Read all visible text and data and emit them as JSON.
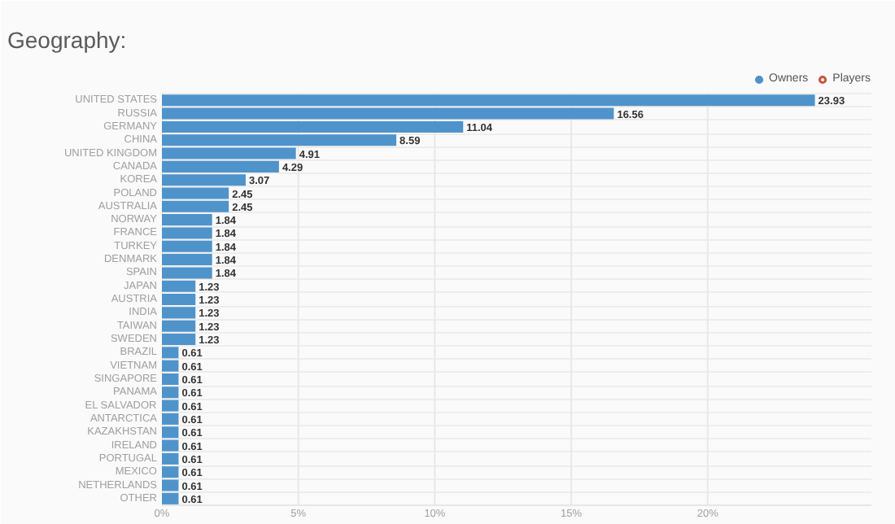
{
  "chart_data": {
    "type": "bar",
    "title": "Geography:",
    "orientation": "horizontal",
    "categories": [
      "UNITED STATES",
      "RUSSIA",
      "GERMANY",
      "CHINA",
      "UNITED KINGDOM",
      "CANADA",
      "KOREA",
      "POLAND",
      "AUSTRALIA",
      "NORWAY",
      "FRANCE",
      "TURKEY",
      "DENMARK",
      "SPAIN",
      "JAPAN",
      "AUSTRIA",
      "INDIA",
      "TAIWAN",
      "SWEDEN",
      "BRAZIL",
      "VIETNAM",
      "SINGAPORE",
      "PANAMA",
      "EL SALVADOR",
      "ANTARCTICA",
      "KAZAKHSTAN",
      "IRELAND",
      "PORTUGAL",
      "MEXICO",
      "NETHERLANDS",
      "OTHER"
    ],
    "series": [
      {
        "name": "Owners",
        "color": "#4f93cb",
        "values": [
          23.93,
          16.56,
          11.04,
          8.59,
          4.91,
          4.29,
          3.07,
          2.45,
          2.45,
          1.84,
          1.84,
          1.84,
          1.84,
          1.84,
          1.23,
          1.23,
          1.23,
          1.23,
          1.23,
          0.61,
          0.61,
          0.61,
          0.61,
          0.61,
          0.61,
          0.61,
          0.61,
          0.61,
          0.61,
          0.61,
          0.61
        ]
      },
      {
        "name": "Players",
        "color": "#c9533f",
        "values": [
          null,
          null,
          null,
          null,
          null,
          null,
          null,
          null,
          null,
          null,
          null,
          null,
          null,
          null,
          null,
          null,
          null,
          null,
          null,
          null,
          null,
          null,
          null,
          null,
          null,
          null,
          null,
          null,
          null,
          null,
          null
        ]
      }
    ],
    "xlim": [
      0,
      26
    ],
    "xticks": [
      {
        "value": 0,
        "label": "0%"
      },
      {
        "value": 5,
        "label": "5%"
      },
      {
        "value": 10,
        "label": "10%"
      },
      {
        "value": 15,
        "label": "15%"
      },
      {
        "value": 20,
        "label": "20%"
      }
    ],
    "data_labels": true,
    "grid": true,
    "legend": "top right"
  }
}
